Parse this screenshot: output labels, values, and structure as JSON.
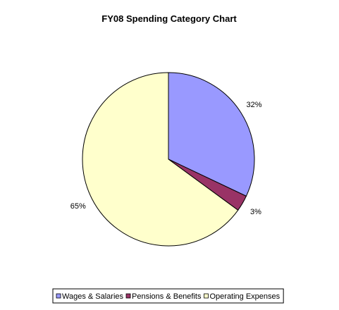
{
  "chart_data": {
    "type": "pie",
    "title": "FY08 Spending Category Chart",
    "categories": [
      "Wages & Salaries",
      "Pensions & Benefits",
      "Operating Expenses"
    ],
    "values": [
      32,
      3,
      65
    ],
    "labels": [
      "32%",
      "3%",
      "65%"
    ],
    "colors": [
      "#9999ff",
      "#993366",
      "#ffffcc"
    ],
    "legend_position": "bottom"
  }
}
